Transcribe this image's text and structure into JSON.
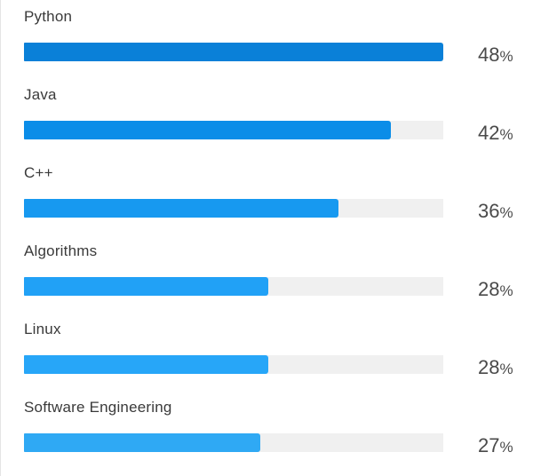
{
  "chart_data": {
    "type": "bar",
    "orientation": "horizontal",
    "categories": [
      "Python",
      "Java",
      "C++",
      "Algorithms",
      "Linux",
      "Software Engineering"
    ],
    "values": [
      48,
      42,
      36,
      28,
      28,
      27
    ],
    "value_suffix": "%",
    "xlim": [
      0,
      48
    ],
    "grid": false,
    "colors": [
      "#0a80d8",
      "#0b8de8",
      "#1799f0",
      "#21a1f6",
      "#27a6f8",
      "#2fa9f4"
    ],
    "track_color": "#f0f0f0"
  }
}
